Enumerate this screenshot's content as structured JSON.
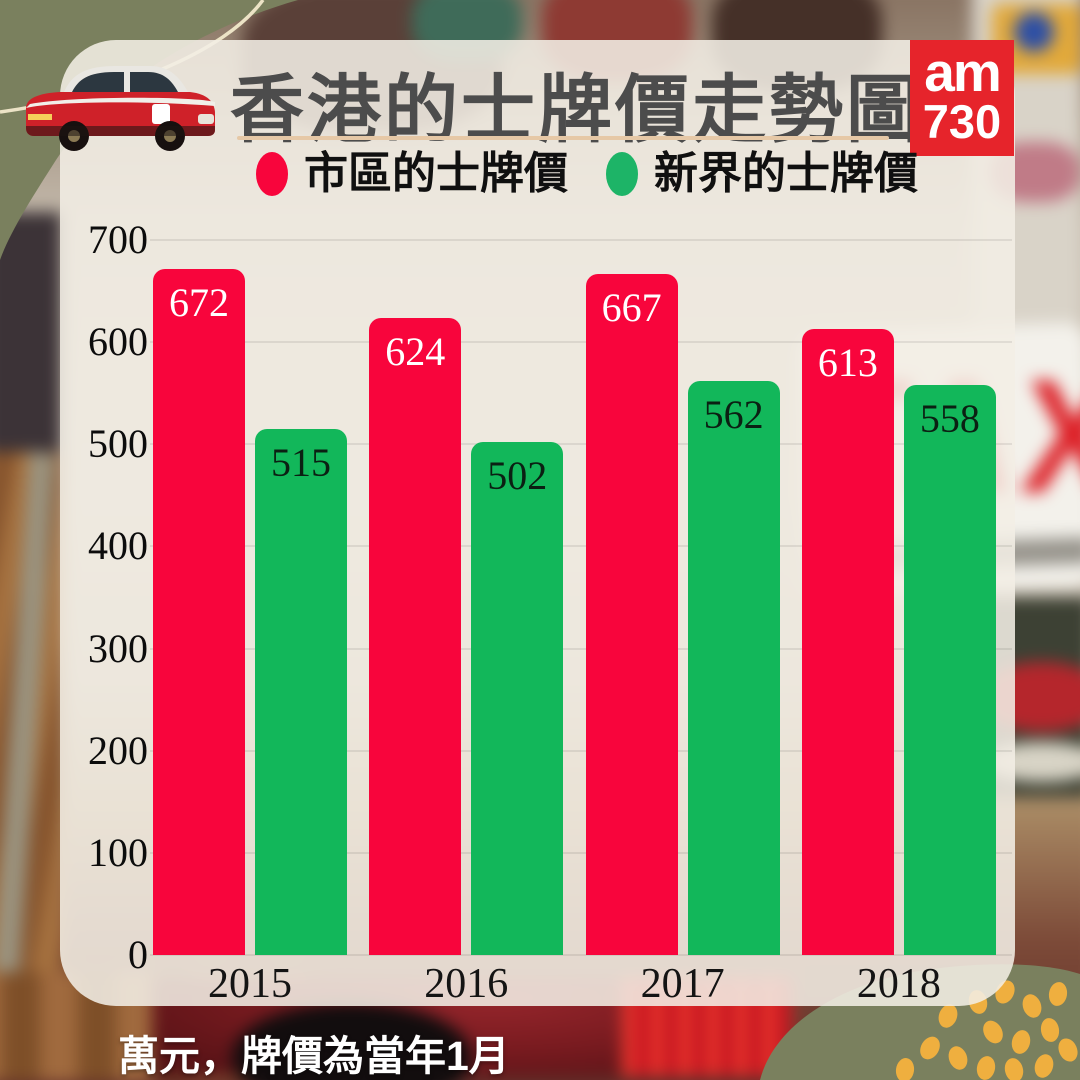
{
  "page": {
    "title": "香港的士牌價走勢圖",
    "footnote": "萬元，牌價為當年1月"
  },
  "logo": {
    "line1": "am",
    "line2": "730"
  },
  "legend": [
    {
      "label": "市區的士牌價",
      "color": "#f8053c"
    },
    {
      "label": "新界的士牌價",
      "color": "#1db467"
    }
  ],
  "chart_data": {
    "type": "bar",
    "title": "香港的士牌價走勢圖",
    "categories": [
      "2015",
      "2016",
      "2017",
      "2018"
    ],
    "series": [
      {
        "name": "市區的士牌價",
        "color": "#f8053c",
        "label_color": "#ffffff",
        "values": [
          672,
          624,
          667,
          613
        ]
      },
      {
        "name": "新界的士牌價",
        "color": "#12b75a",
        "label_color": "#0b2013",
        "values": [
          515,
          502,
          562,
          558
        ]
      }
    ],
    "xlabel": "",
    "ylabel": "",
    "ylim": [
      0,
      700
    ],
    "yticks": [
      0,
      100,
      200,
      300,
      400,
      500,
      600,
      700
    ],
    "grid": true,
    "legend_position": "top",
    "unit_note": "萬元，牌價為當年1月"
  },
  "colors": {
    "card_background": "#f3eee5",
    "olive_blob": "#7a805e",
    "gold_dot": "#efaf3f",
    "title_text": "#4c4c4c",
    "underline": "#e6c8a6",
    "logo_background": "#e6242b",
    "photo_taxi_sign_red": "#dd2027"
  },
  "icons": {
    "taxi": "red-taxi-illustration",
    "logo": "am730-logo",
    "dots": "gold-dots-pattern",
    "curve": "beige-curve-line"
  }
}
